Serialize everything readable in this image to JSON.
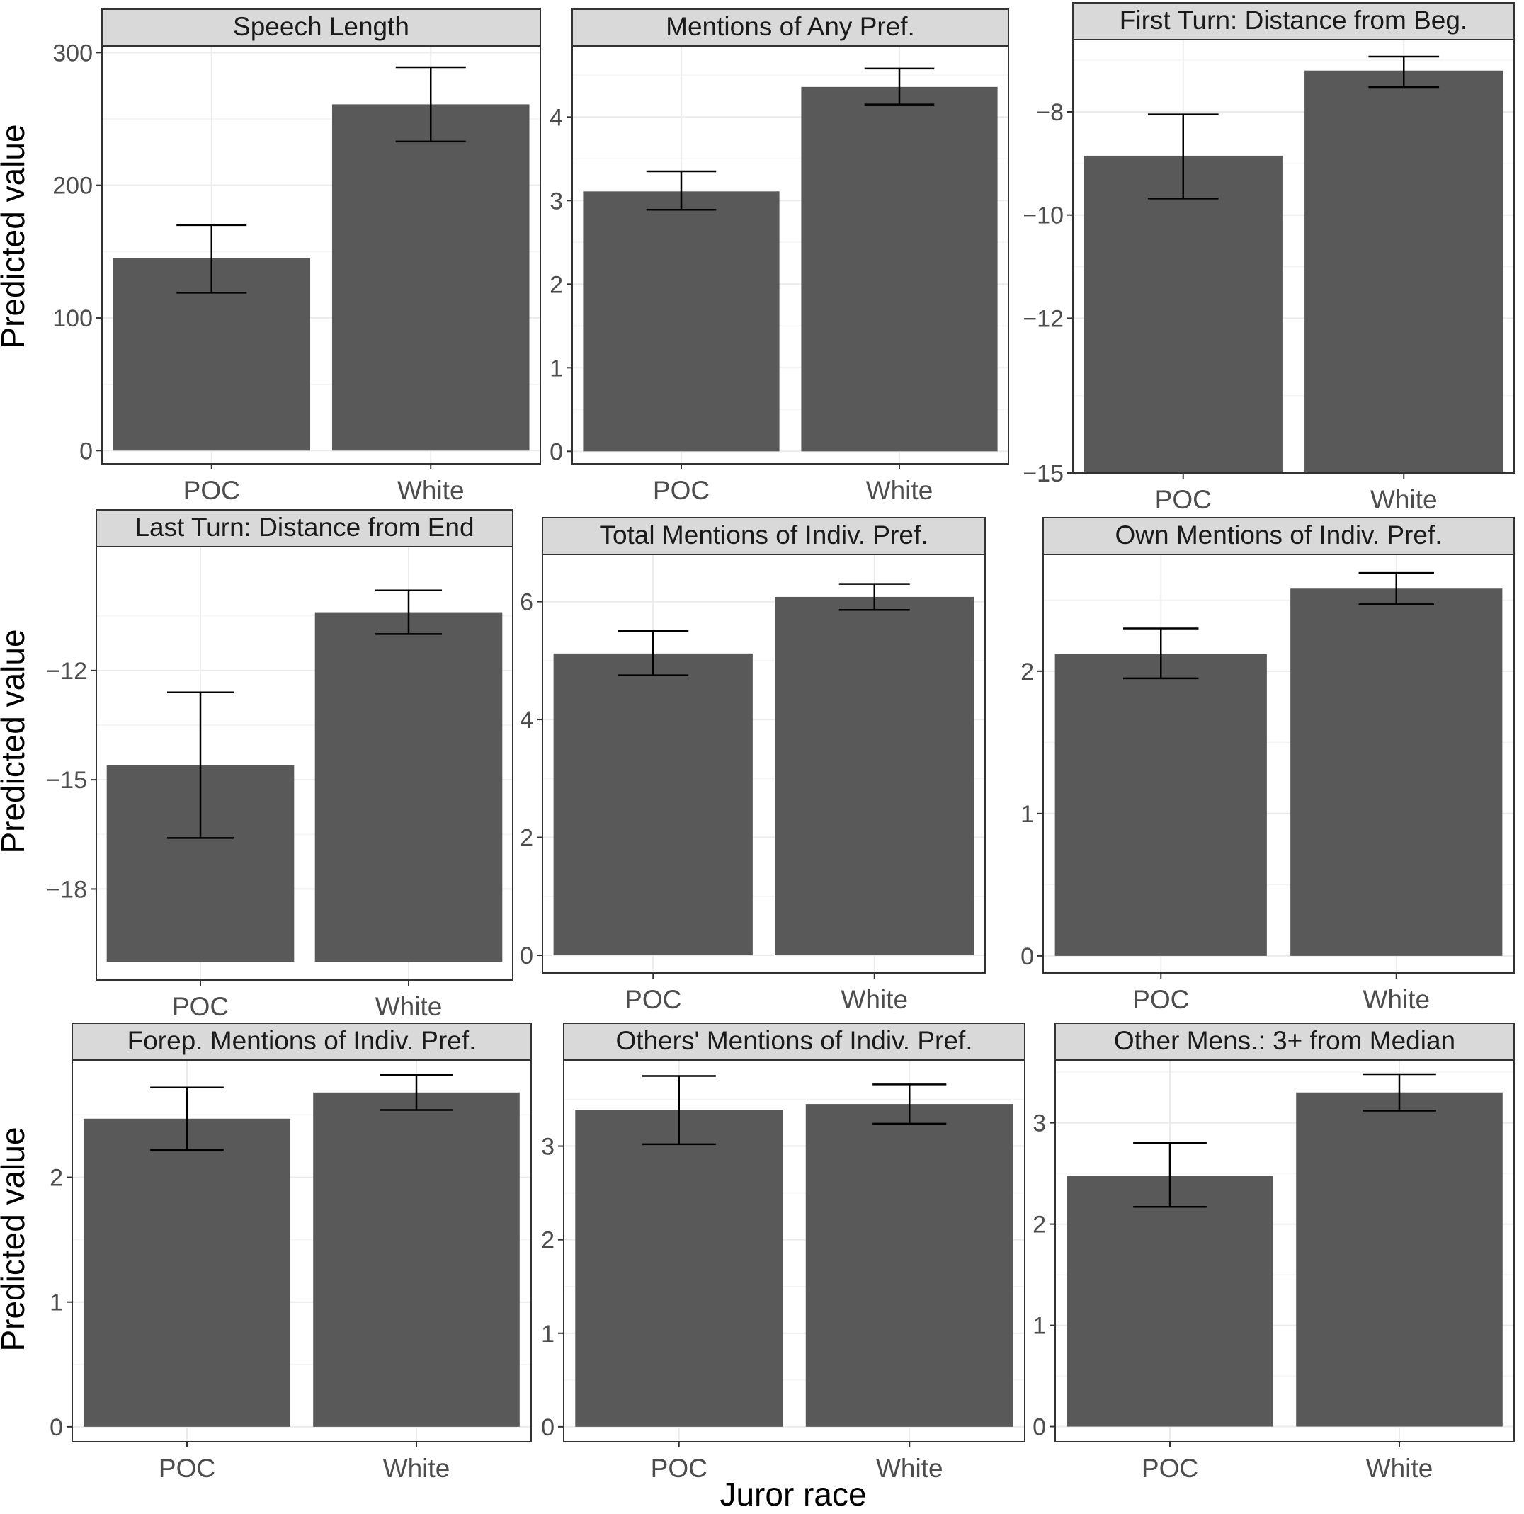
{
  "figure": {
    "xlabel": "Juror race",
    "ylabel": "Predicted value"
  },
  "colors": {
    "bar": "#595959",
    "strip": "#d9d9d9",
    "panel_border": "#333333",
    "grid_major": "#ebebeb",
    "grid_minor": "#f4f4f4",
    "text": "#1a1a1a",
    "tick_text": "#4d4d4d",
    "errorbar": "#000000"
  },
  "chart_data": [
    {
      "type": "bar",
      "title": "Speech Length",
      "categories": [
        "POC",
        "White"
      ],
      "values": [
        145,
        261
      ],
      "error_low": [
        119,
        233
      ],
      "error_high": [
        170,
        289
      ],
      "ylim": [
        -10,
        305
      ],
      "bar_base": 0,
      "yticks": [
        0,
        100,
        200,
        300
      ],
      "ytick_labels": [
        "0",
        "100",
        "200",
        "300"
      ]
    },
    {
      "type": "bar",
      "title": "Mentions of Any Pref.",
      "categories": [
        "POC",
        "White"
      ],
      "values": [
        3.11,
        4.36
      ],
      "error_low": [
        2.89,
        4.15
      ],
      "error_high": [
        3.35,
        4.58
      ],
      "ylim": [
        -0.15,
        4.85
      ],
      "bar_base": 0,
      "yticks": [
        0,
        1,
        2,
        3,
        4
      ],
      "ytick_labels": [
        "0",
        "1",
        "2",
        "3",
        "4"
      ]
    },
    {
      "type": "bar",
      "title": "First Turn: Distance from Beg.",
      "categories": [
        "POC",
        "White"
      ],
      "values": [
        -8.85,
        -7.2
      ],
      "error_low": [
        -9.68,
        -7.52
      ],
      "error_high": [
        -8.05,
        -6.93
      ],
      "ylim": [
        -15.0,
        -6.6
      ],
      "bar_base": -15,
      "yticks": [
        -15,
        -12,
        -10,
        -8
      ],
      "ytick_labels": [
        "−15",
        "−12",
        "−10",
        "−8"
      ]
    },
    {
      "type": "bar",
      "title": "Last Turn: Distance from End",
      "categories": [
        "POC",
        "White"
      ],
      "values": [
        -14.6,
        -10.4
      ],
      "error_low": [
        -16.6,
        -11.0
      ],
      "error_high": [
        -12.6,
        -9.8
      ],
      "ylim": [
        -20.5,
        -8.6
      ],
      "bar_base": -20,
      "yticks": [
        -18,
        -15,
        -12
      ],
      "ytick_labels": [
        "−18",
        "−15",
        "−12"
      ]
    },
    {
      "type": "bar",
      "title": "Total Mentions of Indiv. Pref.",
      "categories": [
        "POC",
        "White"
      ],
      "values": [
        5.12,
        6.08
      ],
      "error_low": [
        4.75,
        5.86
      ],
      "error_high": [
        5.5,
        6.3
      ],
      "ylim": [
        -0.3,
        6.8
      ],
      "bar_base": 0,
      "yticks": [
        0,
        2,
        4,
        6
      ],
      "ytick_labels": [
        "0",
        "2",
        "4",
        "6"
      ]
    },
    {
      "type": "bar",
      "title": "Own Mentions of Indiv. Pref.",
      "categories": [
        "POC",
        "White"
      ],
      "values": [
        2.12,
        2.58
      ],
      "error_low": [
        1.95,
        2.47
      ],
      "error_high": [
        2.3,
        2.69
      ],
      "ylim": [
        -0.12,
        2.82
      ],
      "bar_base": 0,
      "yticks": [
        0,
        1,
        2
      ],
      "ytick_labels": [
        "0",
        "1",
        "2"
      ]
    },
    {
      "type": "bar",
      "title": "Forep. Mentions of Indiv. Pref.",
      "categories": [
        "POC",
        "White"
      ],
      "values": [
        2.47,
        2.68
      ],
      "error_low": [
        2.22,
        2.54
      ],
      "error_high": [
        2.72,
        2.82
      ],
      "ylim": [
        -0.12,
        2.94
      ],
      "bar_base": 0,
      "yticks": [
        0,
        1,
        2
      ],
      "ytick_labels": [
        "0",
        "1",
        "2"
      ]
    },
    {
      "type": "bar",
      "title": "Others' Mentions of Indiv. Pref.",
      "categories": [
        "POC",
        "White"
      ],
      "values": [
        3.39,
        3.45
      ],
      "error_low": [
        3.02,
        3.24
      ],
      "error_high": [
        3.75,
        3.66
      ],
      "ylim": [
        -0.16,
        3.92
      ],
      "bar_base": 0,
      "yticks": [
        0,
        1,
        2,
        3
      ],
      "ytick_labels": [
        "0",
        "1",
        "2",
        "3"
      ]
    },
    {
      "type": "bar",
      "title": "Other Mens.: 3+ from Median",
      "categories": [
        "POC",
        "White"
      ],
      "values": [
        2.48,
        3.3
      ],
      "error_low": [
        2.17,
        3.12
      ],
      "error_high": [
        2.8,
        3.48
      ],
      "ylim": [
        -0.15,
        3.62
      ],
      "bar_base": 0,
      "yticks": [
        0,
        1,
        2,
        3
      ],
      "ytick_labels": [
        "0",
        "1",
        "2",
        "3"
      ]
    }
  ]
}
